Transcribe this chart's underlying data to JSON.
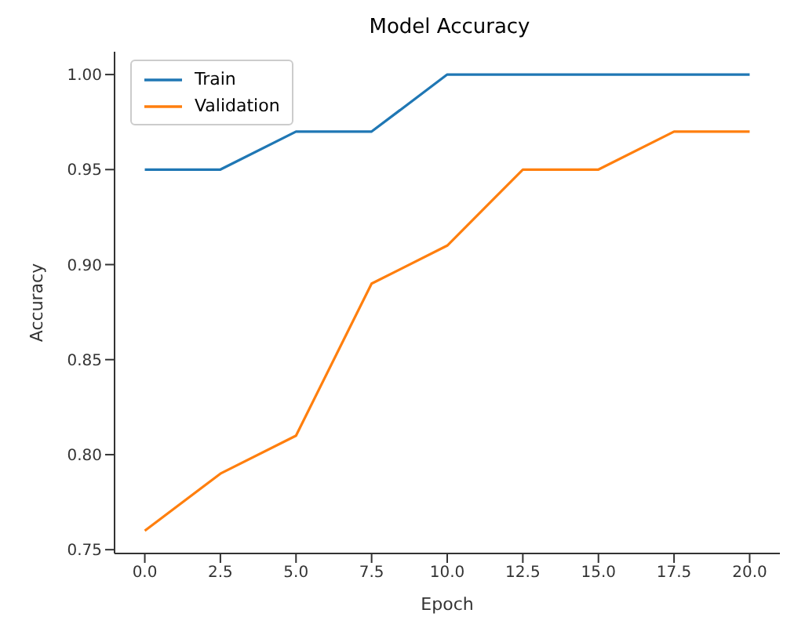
{
  "chart_data": {
    "type": "line",
    "title": "Model Accuracy",
    "xlabel": "Epoch",
    "ylabel": "Accuracy",
    "x": [
      0,
      2.5,
      5,
      7.5,
      10,
      12.5,
      15,
      17.5,
      20
    ],
    "series": [
      {
        "name": "Train",
        "color": "#1f77b4",
        "values": [
          0.95,
          0.95,
          0.97,
          0.97,
          1.0,
          1.0,
          1.0,
          1.0,
          1.0
        ]
      },
      {
        "name": "Validation",
        "color": "#ff7f0e",
        "values": [
          0.76,
          0.79,
          0.81,
          0.89,
          0.91,
          0.95,
          0.95,
          0.97,
          0.97
        ]
      }
    ],
    "xlim": [
      -1,
      21
    ],
    "ylim": [
      0.748,
      1.012
    ],
    "xticks": [
      {
        "value": 0,
        "label": "0.0"
      },
      {
        "value": 2.5,
        "label": "2.5"
      },
      {
        "value": 5,
        "label": "5.0"
      },
      {
        "value": 7.5,
        "label": "7.5"
      },
      {
        "value": 10,
        "label": "10.0"
      },
      {
        "value": 12.5,
        "label": "12.5"
      },
      {
        "value": 15,
        "label": "15.0"
      },
      {
        "value": 17.5,
        "label": "17.5"
      },
      {
        "value": 20,
        "label": "20.0"
      }
    ],
    "yticks": [
      {
        "value": 0.75,
        "label": "0.75"
      },
      {
        "value": 0.8,
        "label": "0.80"
      },
      {
        "value": 0.85,
        "label": "0.85"
      },
      {
        "value": 0.9,
        "label": "0.90"
      },
      {
        "value": 0.95,
        "label": "0.95"
      },
      {
        "value": 1.0,
        "label": "1.00"
      }
    ],
    "grid": false,
    "legend": "top left",
    "marker": "none",
    "line_style": "solid"
  }
}
